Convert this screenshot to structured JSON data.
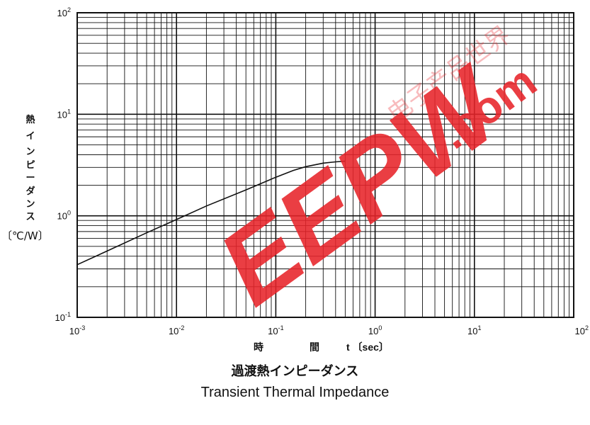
{
  "chart_data": {
    "type": "line",
    "x_scale": "log",
    "y_scale": "log",
    "xlim": [
      0.001,
      100
    ],
    "ylim": [
      0.1,
      100
    ],
    "grid": true,
    "x_ticks": [
      {
        "base": "10",
        "exp": "-3"
      },
      {
        "base": "10",
        "exp": "-2"
      },
      {
        "base": "10",
        "exp": "-1"
      },
      {
        "base": "10",
        "exp": "0"
      },
      {
        "base": "10",
        "exp": "1"
      },
      {
        "base": "10",
        "exp": "2"
      }
    ],
    "y_ticks": [
      {
        "base": "10",
        "exp": "-1"
      },
      {
        "base": "10",
        "exp": "0"
      },
      {
        "base": "10",
        "exp": "1"
      },
      {
        "base": "10",
        "exp": "2"
      }
    ],
    "series": [
      {
        "x": [
          0.001,
          0.002,
          0.005,
          0.01,
          0.02,
          0.05,
          0.1,
          0.15,
          0.2,
          0.3,
          0.4,
          0.5
        ],
        "y": [
          0.33,
          0.45,
          0.68,
          0.92,
          1.25,
          1.8,
          2.4,
          2.8,
          3.05,
          3.3,
          3.4,
          3.45
        ]
      }
    ],
    "ylabel": [
      "熱",
      "イ",
      "ン",
      "ピ",
      "ー",
      "ダ",
      "ン",
      "ス"
    ],
    "ylabel_unit": "〔℃/W〕",
    "xlabel": {
      "part1": "時",
      "part2": "間",
      "part3": "t 〔sec〕"
    },
    "title": "過渡熱インピーダンス",
    "subtitle": "Transient Thermal Impedance"
  },
  "watermark": {
    "main_text": "EEPW",
    "suffix_text": ".com",
    "cn_text": "电子产品世界",
    "color": "#e8242a"
  },
  "colors": {
    "grid": "#111111",
    "curve": "#111111",
    "background": "#ffffff"
  }
}
